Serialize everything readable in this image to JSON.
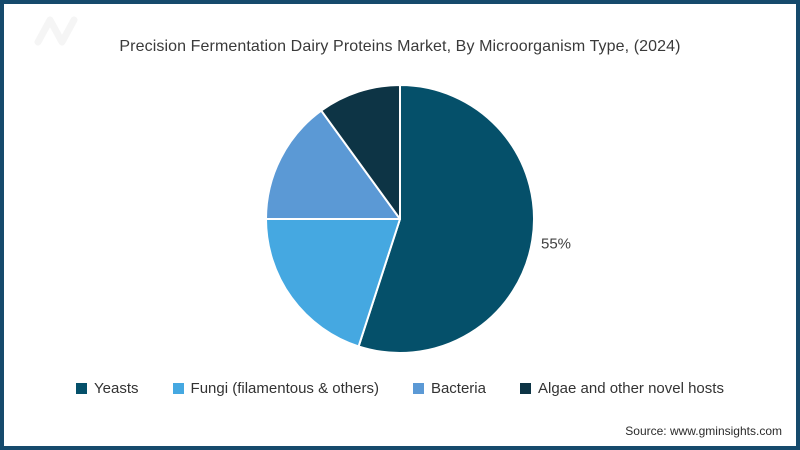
{
  "page": {
    "title": "Precision Fermentation Dairy Proteins Market, By Microorganism Type, (2024)",
    "source": "Source: www.gminsights.com",
    "border_color": "#164a6c",
    "background_color": "#ffffff",
    "title_color": "#3a3a3a"
  },
  "chart_data": {
    "type": "pie",
    "title": "Precision Fermentation Dairy Proteins Market, By Microorganism Type, (2024)",
    "start_angle_deg": 0,
    "direction": "clockwise",
    "units": "%",
    "legend_position": "bottom",
    "separator_color": "#ffffff",
    "data_label_color": "#404040",
    "slices": [
      {
        "label": "Yeasts",
        "value": 55,
        "color": "#05506a",
        "data_label": "55%"
      },
      {
        "label": "Fungi (filamentous & others)",
        "value": 20,
        "color": "#45a8e1",
        "data_label": ""
      },
      {
        "label": "Bacteria",
        "value": 15,
        "color": "#5b99d5",
        "data_label": ""
      },
      {
        "label": "Algae and other novel hosts",
        "value": 10,
        "color": "#0d3445",
        "data_label": ""
      }
    ]
  }
}
